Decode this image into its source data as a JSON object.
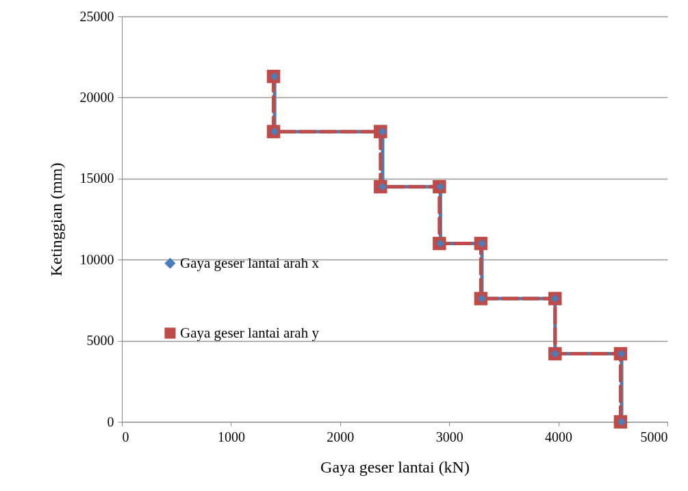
{
  "chart_data": {
    "type": "line",
    "xlabel": "Gaya geser lantai (kN)",
    "ylabel": "Ketinggian (mm)",
    "xlim": [
      0,
      5000
    ],
    "xticks": [
      0,
      1000,
      2000,
      3000,
      4000,
      5000
    ],
    "ylim": [
      0,
      25000
    ],
    "yticks": [
      0,
      5000,
      10000,
      15000,
      20000,
      25000
    ],
    "grid": "y",
    "legend": "left",
    "series": [
      {
        "name": "Gaya geser lantai arah x",
        "color": "#4a7ebb",
        "marker": "diamond",
        "line_style": "solid",
        "x": [
          4580,
          4580,
          3970,
          3970,
          3300,
          3300,
          2920,
          2920,
          2390,
          2390,
          1400,
          1400
        ],
        "values": [
          0,
          4200,
          4200,
          7600,
          7600,
          11000,
          11000,
          14500,
          14500,
          17900,
          17900,
          21300
        ]
      },
      {
        "name": "Gaya geser lantai arah y",
        "color": "#be4b48",
        "marker": "square",
        "line_style": "dashed",
        "x": [
          4570,
          4570,
          3970,
          3970,
          3290,
          3290,
          2910,
          2910,
          2370,
          2370,
          1390,
          1390
        ],
        "values": [
          0,
          4200,
          4200,
          7600,
          7600,
          11000,
          11000,
          14500,
          14500,
          17900,
          17900,
          21300
        ]
      }
    ]
  }
}
